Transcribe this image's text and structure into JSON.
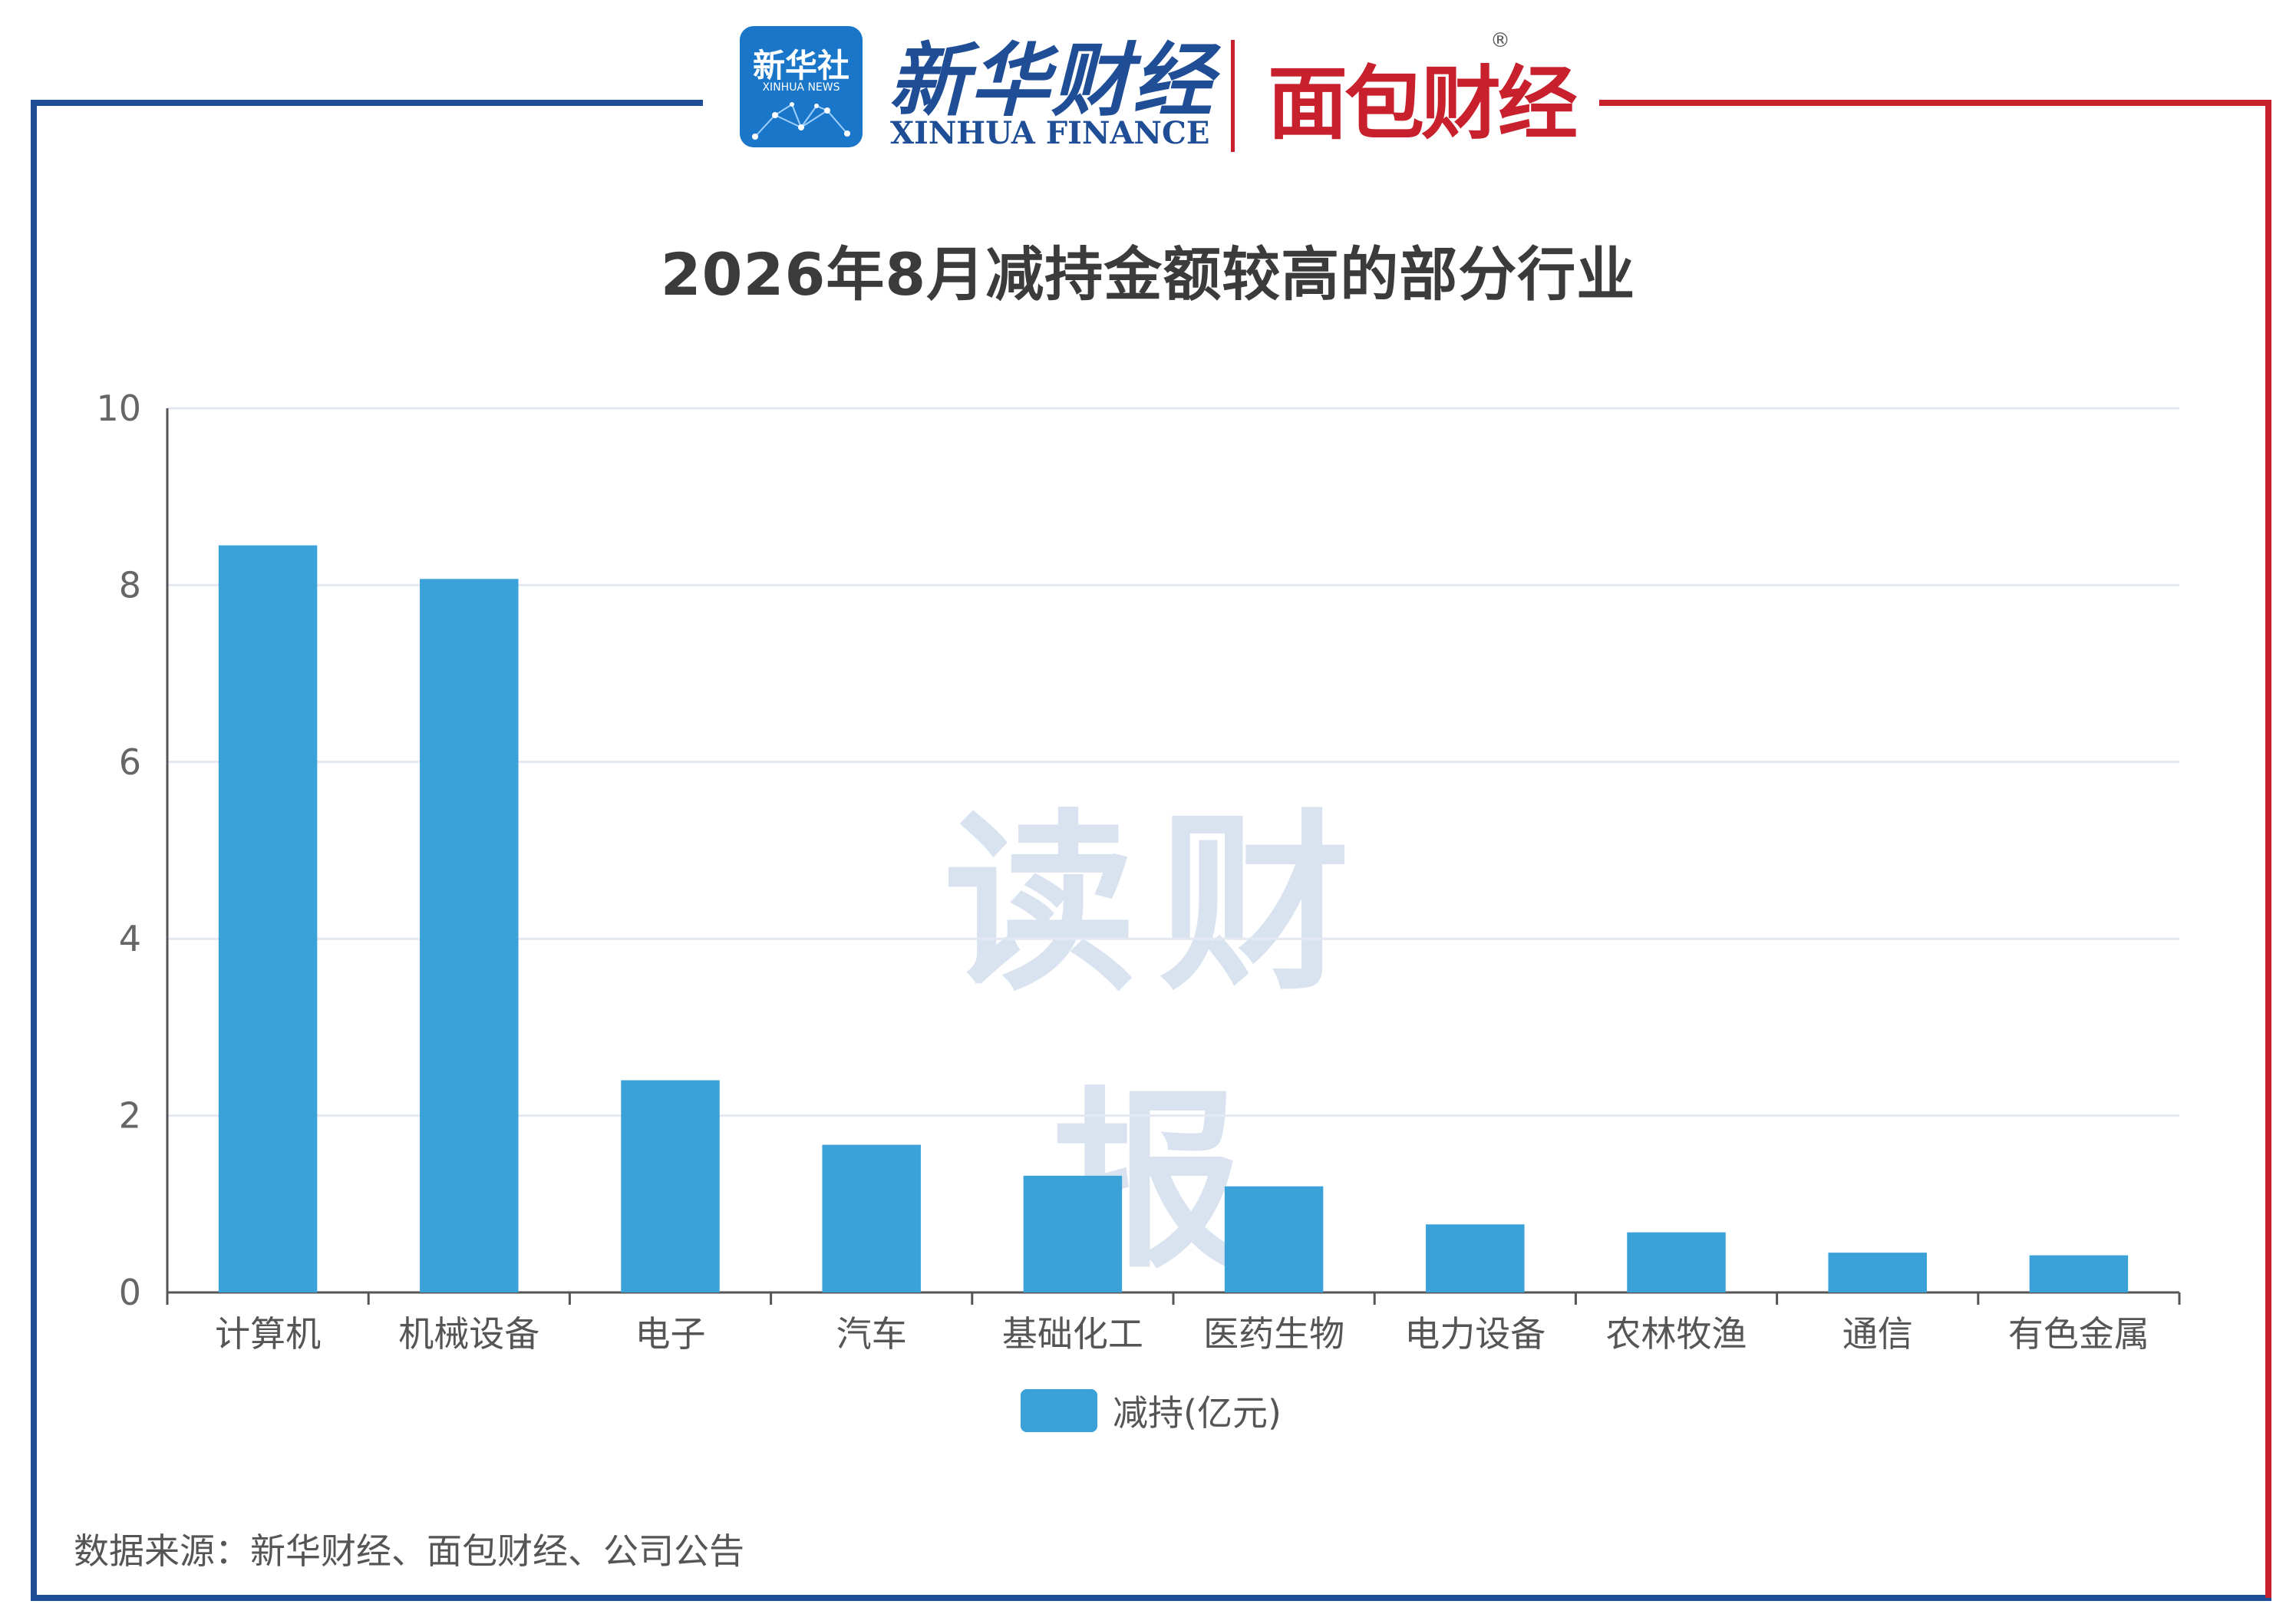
{
  "header": {
    "xinhua_badge_line1": "新华社",
    "xinhua_badge_line2": "XINHUA NEWS",
    "xinhua_finance_cn": "新华财经",
    "xinhua_finance_en": "XINHUA FINANCE",
    "mianbao_logo": "面包财经",
    "registered_mark": "®"
  },
  "watermark": "读财报",
  "source": "数据来源：新华财经、面包财经、公司公告",
  "colors": {
    "bar": "#3aa1d9",
    "frame_left": "#1f4e96",
    "frame_right": "#c8202d",
    "grid": "#e3e8f2"
  },
  "chart_data": {
    "type": "bar",
    "title": "2026年8月减持金额较高的部分行业",
    "categories": [
      "计算机",
      "机械设备",
      "电子",
      "汽车",
      "基础化工",
      "医药生物",
      "电力设备",
      "农林牧渔",
      "通信",
      "有色金属"
    ],
    "series": [
      {
        "name": "减持(亿元)",
        "values": [
          8.45,
          8.07,
          2.4,
          1.67,
          1.32,
          1.2,
          0.77,
          0.68,
          0.45,
          0.42
        ]
      }
    ],
    "yticks": [
      "0",
      "2",
      "4",
      "6",
      "8",
      "10"
    ],
    "ylim": [
      0,
      10
    ],
    "grid": true,
    "legend": "bottom-center"
  }
}
